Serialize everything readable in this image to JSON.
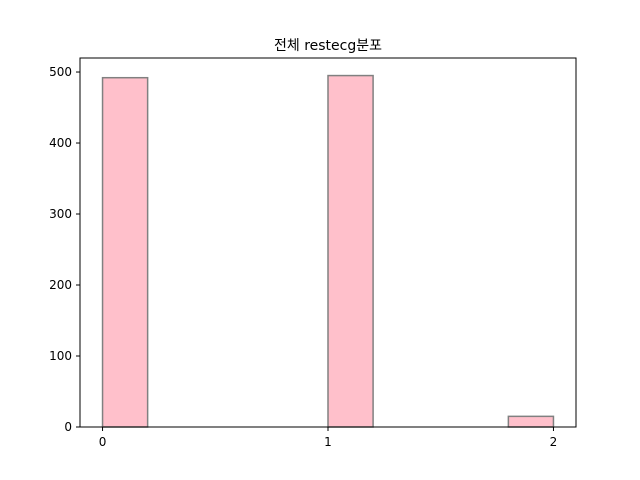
{
  "chart_data": {
    "type": "bar",
    "title": "전체 restecg분포",
    "xlabel": "",
    "ylabel": "",
    "bins": [
      {
        "x0": 0.0,
        "x1": 0.2,
        "count": 492
      },
      {
        "x0": 0.2,
        "x1": 0.4,
        "count": 0
      },
      {
        "x0": 0.4,
        "x1": 0.6,
        "count": 0
      },
      {
        "x0": 0.6,
        "x1": 0.8,
        "count": 0
      },
      {
        "x0": 0.8,
        "x1": 1.0,
        "count": 0
      },
      {
        "x0": 1.0,
        "x1": 1.2,
        "count": 495
      },
      {
        "x0": 1.2,
        "x1": 1.4,
        "count": 0
      },
      {
        "x0": 1.4,
        "x1": 1.6,
        "count": 0
      },
      {
        "x0": 1.6,
        "x1": 1.8,
        "count": 0
      },
      {
        "x0": 1.8,
        "x1": 2.0,
        "count": 15
      }
    ],
    "xlim": [
      -0.1,
      2.1
    ],
    "ylim": [
      0,
      519.75
    ],
    "xticks": [
      0,
      1,
      2
    ],
    "yticks": [
      0,
      100,
      200,
      300,
      400,
      500
    ],
    "bar_color": "#ffc0cb",
    "edge_color": "#808080",
    "grid": false
  }
}
